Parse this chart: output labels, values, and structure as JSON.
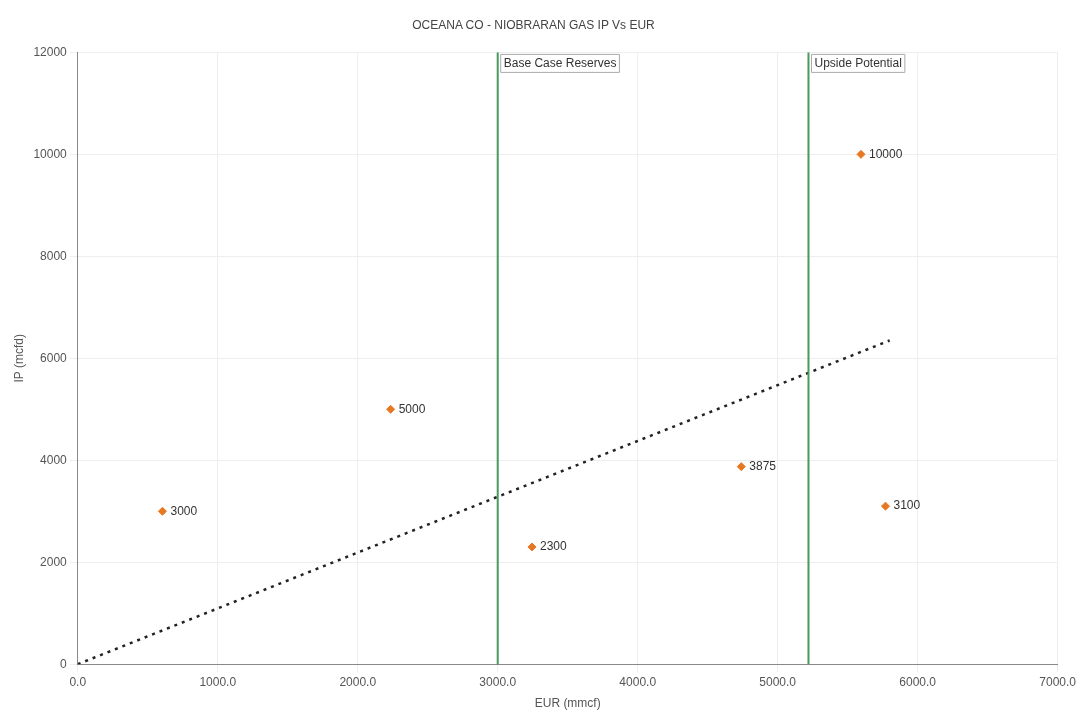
{
  "chart_data": {
    "type": "scatter",
    "title": "OCEANA CO - NIOBRARAN GAS IP Vs EUR",
    "xlabel": "EUR (mmcf)",
    "ylabel": "IP (mcfd)",
    "series": [
      {
        "color": "#e87722",
        "x": [
          605,
          2235,
          3245,
          4740,
          5595,
          5770
        ],
        "values": [
          3000,
          5000,
          2300,
          3875,
          10000,
          3100
        ],
        "value_labels": [
          "3000",
          "5000",
          "2300",
          "3875",
          "10000",
          "3100"
        ]
      },
      {
        "type": "line",
        "color": "#222222",
        "line_style": "dotted",
        "marker": "none",
        "x": [
          0,
          5800
        ],
        "values": [
          0,
          6350
        ]
      }
    ],
    "marker": "diamond",
    "grid": true,
    "legend": false,
    "xlim": [
      0,
      7000
    ],
    "xticks": [
      {
        "value": 0,
        "label": "0.0"
      },
      {
        "value": 1000,
        "label": "1000.0"
      },
      {
        "value": 2000,
        "label": "2000.0"
      },
      {
        "value": 3000,
        "label": "3000.0"
      },
      {
        "value": 4000,
        "label": "4000.0"
      },
      {
        "value": 5000,
        "label": "5000.0"
      },
      {
        "value": 6000,
        "label": "6000.0"
      },
      {
        "value": 7000,
        "label": "7000.0"
      }
    ],
    "ylim": [
      0,
      12000
    ],
    "yticks": [
      0,
      2000,
      4000,
      6000,
      8000,
      10000,
      12000
    ],
    "ref_lines": [
      {
        "axis": "x",
        "value": 3000,
        "label": "Base Case Reserves",
        "color": "#4a9a5a"
      },
      {
        "axis": "x",
        "value": 5220,
        "label": "Upside Potential",
        "color": "#4a9a5a"
      }
    ]
  }
}
